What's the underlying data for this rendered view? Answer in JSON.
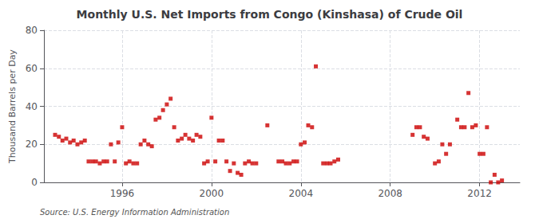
{
  "chart_data": {
    "type": "scatter",
    "title": "Monthly U.S. Net Imports from Congo (Kinshasa) of Crude Oil",
    "ylabel": "Thousand Barrels per Day",
    "annotation": "Source: U.S. Energy Information Administration",
    "color": "#cc0000",
    "marker": "square",
    "grid": true,
    "xlim": [
      1992.5,
      2013.8
    ],
    "xticks": [
      1996,
      2000,
      2004,
      2008,
      2012
    ],
    "ylim": [
      0,
      80
    ],
    "yticks": [
      0,
      20,
      40,
      60,
      80
    ],
    "x": [
      1993.0,
      1993.17,
      1993.33,
      1993.5,
      1993.67,
      1993.83,
      1994.0,
      1994.17,
      1994.33,
      1994.5,
      1994.67,
      1994.83,
      1995.0,
      1995.17,
      1995.33,
      1995.5,
      1995.67,
      1995.83,
      1996.0,
      1996.17,
      1996.33,
      1996.5,
      1996.67,
      1996.83,
      1997.0,
      1997.17,
      1997.33,
      1997.5,
      1997.67,
      1997.83,
      1998.0,
      1998.17,
      1998.33,
      1998.5,
      1998.67,
      1998.83,
      1999.0,
      1999.17,
      1999.33,
      1999.5,
      1999.67,
      1999.83,
      2000.0,
      2000.17,
      2000.33,
      2000.5,
      2000.67,
      2000.83,
      2001.0,
      2001.17,
      2001.33,
      2001.5,
      2001.67,
      2001.83,
      2002.0,
      2002.5,
      2003.0,
      2003.17,
      2003.33,
      2003.5,
      2003.67,
      2003.83,
      2004.0,
      2004.17,
      2004.33,
      2004.5,
      2004.67,
      2005.0,
      2005.17,
      2005.33,
      2005.5,
      2005.67,
      2009.0,
      2009.17,
      2009.33,
      2009.5,
      2009.67,
      2010.0,
      2010.17,
      2010.33,
      2010.5,
      2010.67,
      2011.0,
      2011.17,
      2011.33,
      2011.5,
      2011.67,
      2011.83,
      2012.0,
      2012.17,
      2012.33,
      2012.5,
      2012.67,
      2012.83,
      2013.0
    ],
    "values": [
      25,
      24,
      22,
      23,
      21,
      22,
      20,
      21,
      22,
      11,
      11,
      11,
      10,
      11,
      11,
      20,
      11,
      21,
      29,
      10,
      11,
      10,
      10,
      20,
      22,
      20,
      19,
      33,
      34,
      38,
      41,
      44,
      29,
      22,
      23,
      25,
      23,
      22,
      25,
      24,
      10,
      11,
      34,
      11,
      22,
      22,
      11,
      6,
      10,
      5,
      4,
      10,
      11,
      10,
      10,
      30,
      11,
      11,
      10,
      10,
      11,
      11,
      20,
      21,
      30,
      29,
      61,
      10,
      10,
      10,
      11,
      12,
      25,
      29,
      29,
      24,
      23,
      10,
      11,
      20,
      15,
      20,
      33,
      29,
      29,
      47,
      29,
      30,
      15,
      15,
      29,
      0,
      4,
      0,
      1
    ]
  }
}
